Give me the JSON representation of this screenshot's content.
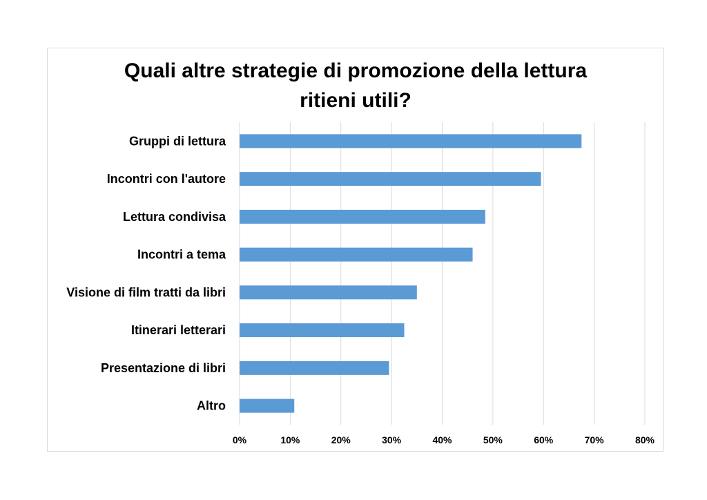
{
  "chart_data": {
    "type": "bar",
    "orientation": "horizontal",
    "title": "Quali altre strategie di promozione della lettura ritieni utili?",
    "title_lines": [
      "Quali altre strategie di promozione della lettura",
      "ritieni utili?"
    ],
    "categories": [
      "Gruppi di lettura",
      "Incontri con l'autore",
      "Lettura condivisa",
      "Incontri a tema",
      "Visione di film tratti da libri",
      "Itinerari letterari",
      "Presentazione di libri",
      "Altro"
    ],
    "values": [
      67.5,
      59.5,
      48.5,
      46,
      35,
      32.5,
      29.5,
      10.8
    ],
    "value_unit": "%",
    "xlim": [
      0,
      80
    ],
    "x_ticks": [
      "0%",
      "10%",
      "20%",
      "30%",
      "40%",
      "50%",
      "60%",
      "70%",
      "80%"
    ],
    "xlabel": "",
    "ylabel": "",
    "grid": "vertical",
    "legend": "none",
    "colors": {
      "bar": "#5b9bd5",
      "grid": "#d9d9d9",
      "text": "#000000"
    }
  }
}
